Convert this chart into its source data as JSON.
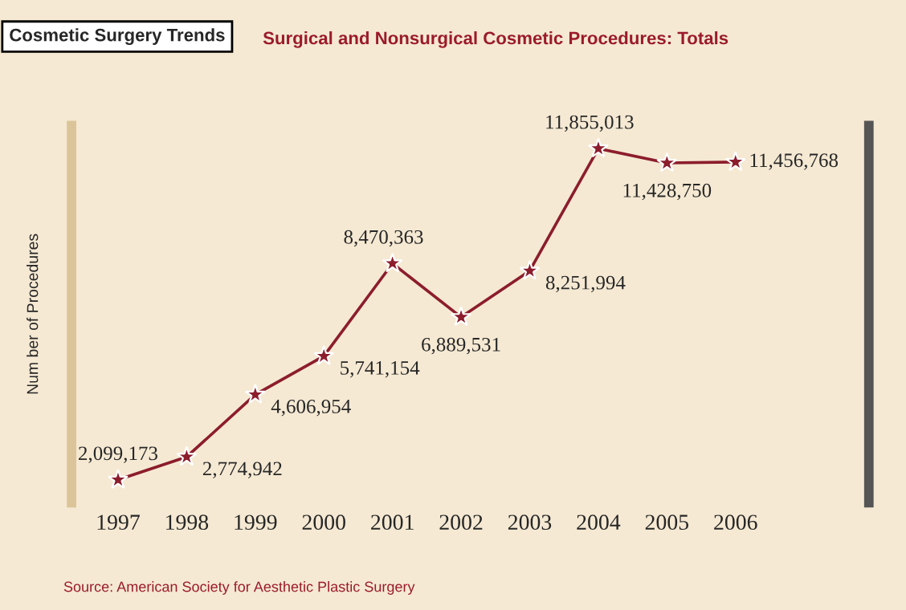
{
  "chart_data": {
    "type": "line",
    "title": "Cosmetic Surgery Trends",
    "subtitle": "Surgical and Nonsurgical Cosmetic Procedures: Totals",
    "ylabel": "Num ber of Procedures",
    "categories": [
      "1997",
      "1998",
      "1999",
      "2000",
      "2001",
      "2002",
      "2003",
      "2004",
      "2005",
      "2006"
    ],
    "series": [
      {
        "color": "#8c1d2c",
        "values": [
          2099173,
          2774942,
          4606954,
          5741154,
          8470363,
          6889531,
          8251994,
          11855013,
          11428750,
          11456768
        ],
        "value_labels": [
          "2,099,173",
          "2,774,942",
          "4,606,954",
          "5,741,154",
          "8,470,363",
          "6,889,531",
          "8,251,994",
          "11,855,013",
          "11,428,750",
          "11,456,768"
        ]
      }
    ],
    "marker": "star",
    "grid": false,
    "legend": false,
    "annotations": [
      "Source: American Society for Aesthetic Plastic Surgery"
    ]
  }
}
